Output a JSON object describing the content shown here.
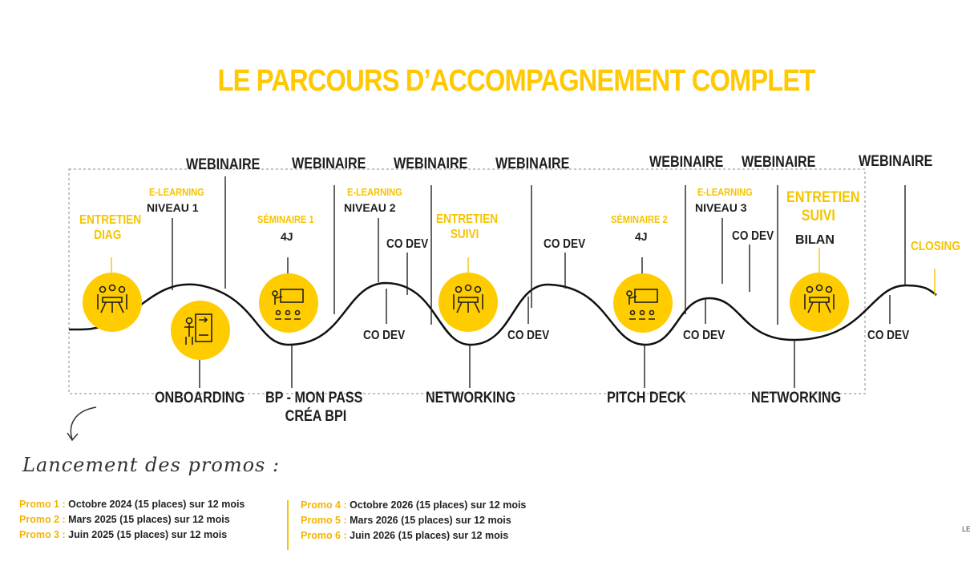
{
  "title": "LE PARCOURS D’ACCOMPAGNEMENT COMPLET",
  "webinaire": "WEBINAIRE",
  "codev": "CO DEV",
  "top_labels": {
    "entretien_diag": [
      "ENTRETIEN",
      "DIAG"
    ],
    "elearning_1": {
      "kicker": "E-LEARNING",
      "level": "NIVEAU 1"
    },
    "seminaire_1": {
      "kicker": "SÉMINAIRE 1",
      "duration": "4J"
    },
    "elearning_2": {
      "kicker": "E-LEARNING",
      "level": "NIVEAU 2"
    },
    "entretien_suivi": [
      "ENTRETIEN",
      "SUIVI"
    ],
    "seminaire_2": {
      "kicker": "SÉMINAIRE 2",
      "duration": "4J"
    },
    "elearning_3": {
      "kicker": "E-LEARNING",
      "level": "NIVEAU 3"
    },
    "entretien_suivi_bilan": [
      "ENTRETIEN",
      "SUIVI",
      "BILAN"
    ],
    "closing": "CLOSING"
  },
  "bottom_labels": {
    "onboarding": "ONBOARDING",
    "bp": [
      "BP - MON PASS",
      "CRÉA BPI"
    ],
    "networking_1": "NETWORKING",
    "pitch_deck": "PITCH DECK",
    "networking_2": "NETWORKING"
  },
  "icons": [
    "meeting-icon",
    "onboarding-board-icon",
    "seminar-presentation-icon",
    "meeting-icon",
    "seminar-presentation-icon",
    "meeting-icon"
  ],
  "colors": {
    "accent": "#FFC800",
    "dark": "#1e1e1e"
  },
  "promos": {
    "heading": "Lancement des promos :",
    "left": [
      {
        "key": "Promo 1 :",
        "text": "Octobre 2024 (15 places) sur 12 mois"
      },
      {
        "key": "Promo 2 :",
        "text": "Mars 2025 (15 places) sur 12 mois"
      },
      {
        "key": "Promo 3 :",
        "text": "Juin 2025 (15 places) sur 12 mois"
      }
    ],
    "right": [
      {
        "key": "Promo 4 :",
        "text": "Octobre 2026 (15 places) sur 12 mois"
      },
      {
        "key": "Promo 5 :",
        "text": "Mars 2026 (15 places) sur 12 mois"
      },
      {
        "key": "Promo 6 :",
        "text": "Juin 2026 (15 places) sur 12 mois"
      }
    ]
  },
  "corner_text": "LE"
}
